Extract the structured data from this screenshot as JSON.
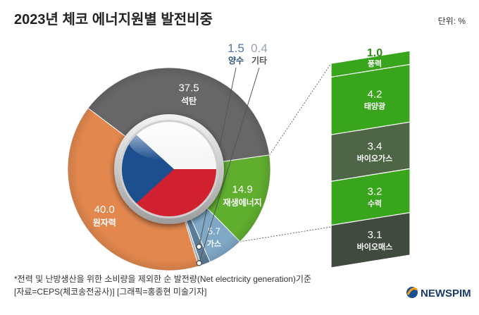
{
  "header": {
    "title": "2023년 체코 에너지원별 발전비중",
    "unit": "단위: %"
  },
  "chart_data": [
    {
      "type": "pie",
      "variant": "donut",
      "slices": [
        {
          "name": "원자력",
          "value": 40.0,
          "value_label": "40.0",
          "color": "#e2874e"
        },
        {
          "name": "석탄",
          "value": 37.5,
          "value_label": "37.5",
          "color": "#676767"
        },
        {
          "name": "재생에너지",
          "value": 14.9,
          "value_label": "14.9",
          "color": "#5fae2e"
        },
        {
          "name": "가스",
          "value": 5.7,
          "value_label": "5.7",
          "color": "#7fa8c7"
        },
        {
          "name": "양수",
          "value": 1.5,
          "value_label": "1.5",
          "color": "#5a7c98"
        },
        {
          "name": "기타",
          "value": 0.4,
          "value_label": "0.4",
          "color": "#9aa7b2"
        }
      ]
    },
    {
      "type": "bar",
      "variant": "stacked-breakdown",
      "parent": "재생에너지",
      "categories": [
        "풍력",
        "태양광",
        "바이오가스",
        "수력",
        "바이오매스"
      ],
      "values": [
        1.0,
        4.2,
        3.4,
        3.2,
        3.1
      ],
      "value_labels": [
        "1.0",
        "4.2",
        "3.4",
        "3.2",
        "3.1"
      ],
      "colors": [
        "#39a51c",
        "#39a51c",
        "#4e6546",
        "#39a51c",
        "#414a3e"
      ]
    }
  ],
  "footer": {
    "note": "*전력 및 난방생산을 위한 소비량을 제외한 순 발전량(Net electricity generation)기준",
    "source": "[자료=CEPS(체코송전공사)] [그래픽=홍종현 미술기자]",
    "logo_text": "NEWSPIM"
  },
  "icons": {
    "center": "czech-flag-icon",
    "logo": "newspim-logo-icon"
  }
}
